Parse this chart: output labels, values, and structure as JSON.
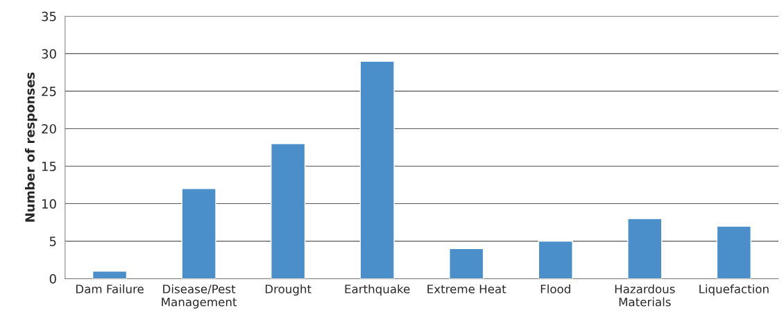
{
  "chart_data": {
    "type": "bar",
    "ylabel": "Number of responses",
    "categories": [
      "Dam Failure",
      "Disease/Pest\nManagement",
      "Drought",
      "Earthquake",
      "Extreme Heat",
      "Flood",
      "Hazardous\nMaterials",
      "Liquefaction"
    ],
    "values": [
      1,
      12,
      18,
      29,
      4,
      5,
      8,
      7
    ],
    "color": "#4a8fc9",
    "ylim": [
      0,
      35
    ],
    "yticks": [
      0,
      5,
      10,
      15,
      20,
      25,
      30,
      35
    ],
    "grid": "y"
  }
}
